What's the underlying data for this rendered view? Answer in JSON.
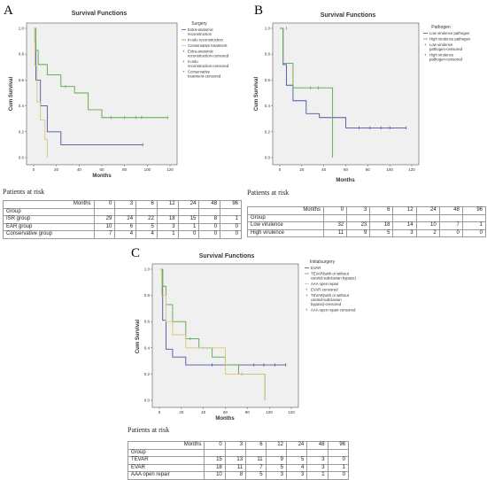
{
  "chart_data": [
    {
      "panel": "A",
      "type": "line",
      "title": "Survival Functions",
      "xlabel": "Months",
      "ylabel": "Cum Survival",
      "xlim": [
        0,
        120
      ],
      "ylim": [
        0,
        1.0
      ],
      "xticks": [
        0,
        20,
        40,
        60,
        80,
        100,
        120
      ],
      "yticks": [
        0.0,
        0.2,
        0.4,
        0.6,
        0.8,
        1.0
      ],
      "legend_title": "Surgery",
      "legend_labels": [
        "Extra-anatomic reconstruction",
        "In-situ reconstruction",
        "Conservative treatment",
        "Extra-anatomic reconstruction-censored",
        "In-situ reconstruction-censored",
        "Conservative treatment-censored"
      ],
      "series": [
        {
          "name": "Extra-anatomic reconstruction",
          "color": "#4a55a5",
          "steps": [
            [
              0,
              1.0
            ],
            [
              1,
              0.9
            ],
            [
              2,
              0.6
            ],
            [
              6,
              0.4
            ],
            [
              12,
              0.2
            ],
            [
              24,
              0.1
            ],
            [
              96,
              0.1
            ]
          ],
          "censored": [
            [
              96,
              0.1
            ]
          ]
        },
        {
          "name": "In-situ reconstruction",
          "color": "#5aa845",
          "steps": [
            [
              0,
              1.0
            ],
            [
              2,
              0.83
            ],
            [
              4,
              0.72
            ],
            [
              12,
              0.64
            ],
            [
              24,
              0.55
            ],
            [
              36,
              0.5
            ],
            [
              48,
              0.37
            ],
            [
              60,
              0.31
            ],
            [
              118,
              0.31
            ]
          ],
          "censored": [
            [
              28,
              0.55
            ],
            [
              68,
              0.31
            ],
            [
              80,
              0.31
            ],
            [
              90,
              0.31
            ],
            [
              95,
              0.31
            ],
            [
              118,
              0.31
            ]
          ]
        },
        {
          "name": "Conservative treatment",
          "color": "#d8c57a",
          "steps": [
            [
              0,
              1.0
            ],
            [
              1,
              0.71
            ],
            [
              3,
              0.43
            ],
            [
              6,
              0.29
            ],
            [
              10,
              0.14
            ],
            [
              12,
              0.0
            ]
          ],
          "censored": []
        }
      ]
    },
    {
      "panel": "B",
      "type": "line",
      "title": "Survival Functions",
      "xlabel": "Months",
      "ylabel": "Cum Survival",
      "xlim": [
        0,
        120
      ],
      "ylim": [
        0,
        1.0
      ],
      "xticks": [
        0,
        20,
        40,
        60,
        80,
        100,
        120
      ],
      "yticks": [
        0.0,
        0.2,
        0.4,
        0.6,
        0.8,
        1.0
      ],
      "legend_title": "Pathogen",
      "legend_labels": [
        "Low virulence pathogen",
        "High virulence pathogen",
        "Low virulence pathogen-censored",
        "High virulence pathogen-censored"
      ],
      "series": [
        {
          "name": "Low virulence pathogen",
          "color": "#4a55a5",
          "steps": [
            [
              0,
              1.0
            ],
            [
              3,
              0.72
            ],
            [
              6,
              0.56
            ],
            [
              12,
              0.44
            ],
            [
              24,
              0.34
            ],
            [
              36,
              0.31
            ],
            [
              48,
              0.31
            ],
            [
              60,
              0.23
            ],
            [
              115,
              0.23
            ]
          ],
          "censored": [
            [
              72,
              0.23
            ],
            [
              82,
              0.23
            ],
            [
              92,
              0.23
            ],
            [
              100,
              0.23
            ],
            [
              115,
              0.23
            ]
          ]
        },
        {
          "name": "High virulence pathogen",
          "color": "#5aa845",
          "steps": [
            [
              0,
              1.0
            ],
            [
              3,
              0.73
            ],
            [
              12,
              0.54
            ],
            [
              48,
              0.0
            ]
          ],
          "censored": [
            [
              6,
              1.0
            ],
            [
              28,
              0.54
            ],
            [
              35,
              0.54
            ]
          ]
        }
      ]
    },
    {
      "panel": "C",
      "type": "line",
      "title": "Survival Functions",
      "xlabel": "Months",
      "ylabel": "Cum Survival",
      "xlim": [
        0,
        120
      ],
      "ylim": [
        0,
        1.0
      ],
      "xticks": [
        0,
        20,
        40,
        60,
        80,
        100,
        120
      ],
      "yticks": [
        0.0,
        0.2,
        0.4,
        0.6,
        0.8,
        1.0
      ],
      "legend_title": "Initialsurgery",
      "legend_labels": [
        "EVAR",
        "TEVAR(with or without carotid-subclavian bypass)",
        "AAA open repair",
        "EVAR-censored",
        "TEVAR(with or without carotid-subclavian bypass)-censored",
        "AAA open repair-censored"
      ],
      "series": [
        {
          "name": "EVAR",
          "color": "#4a55a5",
          "steps": [
            [
              0,
              1.0
            ],
            [
              3,
              0.61
            ],
            [
              6,
              0.39
            ],
            [
              12,
              0.33
            ],
            [
              24,
              0.27
            ],
            [
              115,
              0.27
            ]
          ],
          "censored": [
            [
              48,
              0.27
            ],
            [
              86,
              0.27
            ],
            [
              95,
              0.27
            ],
            [
              105,
              0.27
            ],
            [
              115,
              0.27
            ]
          ]
        },
        {
          "name": "TEVAR(with or without carotid-subclavian bypass)",
          "color": "#5aa845",
          "steps": [
            [
              0,
              1.0
            ],
            [
              3,
              0.87
            ],
            [
              6,
              0.73
            ],
            [
              12,
              0.6
            ],
            [
              24,
              0.47
            ],
            [
              36,
              0.4
            ],
            [
              48,
              0.33
            ],
            [
              60,
              0.27
            ],
            [
              72,
              0.2
            ],
            [
              96,
              0.0
            ]
          ],
          "censored": [
            [
              28,
              0.47
            ],
            [
              75,
              0.2
            ]
          ]
        },
        {
          "name": "AAA open repair",
          "color": "#d8c57a",
          "steps": [
            [
              0,
              1.0
            ],
            [
              2,
              0.8
            ],
            [
              6,
              0.6
            ],
            [
              12,
              0.5
            ],
            [
              24,
              0.4
            ],
            [
              36,
              0.4
            ],
            [
              60,
              0.2
            ],
            [
              96,
              0.0
            ]
          ],
          "censored": [
            [
              40,
              0.4
            ]
          ]
        }
      ]
    }
  ],
  "risk_tables": [
    {
      "title": "Patients at risk",
      "months_label": "Months",
      "group_label": "Group",
      "months": [
        "0",
        "3",
        "6",
        "12",
        "24",
        "48",
        "96"
      ],
      "rows": [
        {
          "label": "ISR group",
          "values": [
            "29",
            "24",
            "22",
            "18",
            "15",
            "8",
            "1"
          ]
        },
        {
          "label": "EAR group",
          "values": [
            "10",
            "6",
            "5",
            "3",
            "1",
            "0",
            "0"
          ]
        },
        {
          "label": "Conservative group",
          "values": [
            "7",
            "4",
            "4",
            "1",
            "0",
            "0",
            "0"
          ]
        }
      ]
    },
    {
      "title": "Patients at risk",
      "months_label": "Months",
      "group_label": "Group",
      "months": [
        "0",
        "3",
        "6",
        "12",
        "24",
        "48",
        "96"
      ],
      "rows": [
        {
          "label": "Low virulence",
          "values": [
            "32",
            "23",
            "18",
            "14",
            "10",
            "7",
            "1"
          ]
        },
        {
          "label": "High virulence",
          "values": [
            "11",
            "9",
            "5",
            "3",
            "2",
            "0",
            "0"
          ]
        }
      ]
    },
    {
      "title": "Patients at risk",
      "months_label": "Months",
      "group_label": "Group",
      "months": [
        "0",
        "3",
        "6",
        "12",
        "24",
        "48",
        "96"
      ],
      "rows": [
        {
          "label": "TEVAR",
          "values": [
            "15",
            "13",
            "11",
            "9",
            "5",
            "3",
            "0"
          ]
        },
        {
          "label": "EVAR",
          "values": [
            "18",
            "11",
            "7",
            "5",
            "4",
            "3",
            "1"
          ]
        },
        {
          "label": "AAA open repair",
          "values": [
            "10",
            "8",
            "5",
            "3",
            "3",
            "1",
            "0"
          ]
        }
      ]
    }
  ]
}
